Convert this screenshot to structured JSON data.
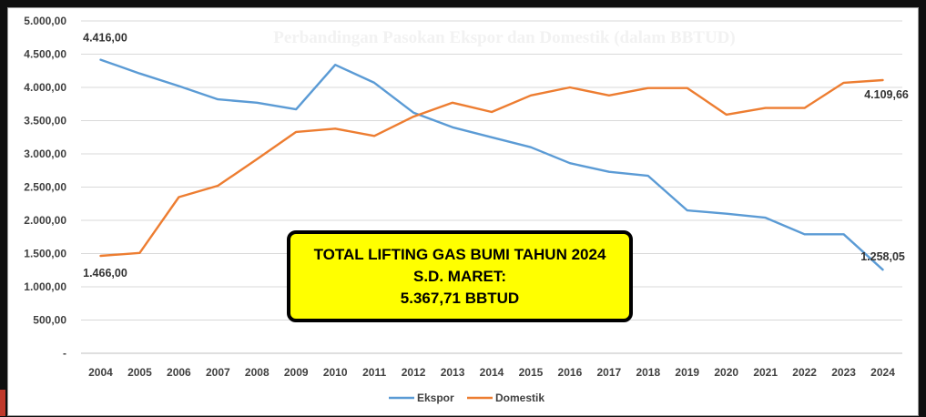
{
  "colors": {
    "ekspor": "#5b9bd5",
    "domestik": "#ed7d31",
    "grid": "#d9d9d9",
    "box_fill": "#ffff00"
  },
  "chart_data": {
    "type": "line",
    "title": "Perbandingan Pasokan Ekspor dan Domestik (dalam BBTUD)",
    "x": [
      "2004",
      "2005",
      "2006",
      "2007",
      "2008",
      "2009",
      "2010",
      "2011",
      "2012",
      "2013",
      "2014",
      "2015",
      "2016",
      "2017",
      "2018",
      "2019",
      "2020",
      "2021",
      "2022",
      "2023",
      "2024"
    ],
    "series": [
      {
        "name": "Ekspor",
        "values": [
          4416,
          4210,
          4020,
          3820,
          3770,
          3670,
          4340,
          4070,
          3620,
          3400,
          3250,
          3100,
          2860,
          2730,
          2670,
          2150,
          2100,
          2040,
          1790,
          1790,
          1258.05
        ]
      },
      {
        "name": "Domestik",
        "values": [
          1466,
          1510,
          2350,
          2520,
          2920,
          3330,
          3380,
          3270,
          3560,
          3770,
          3630,
          3880,
          4000,
          3880,
          3990,
          3990,
          3590,
          3690,
          3690,
          4070,
          4109.66
        ]
      }
    ],
    "yticks": [
      "-",
      "500,00",
      "1.000,00",
      "1.500,00",
      "2.000,00",
      "2.500,00",
      "3.000,00",
      "3.500,00",
      "4.000,00",
      "4.500,00",
      "5.000,00"
    ],
    "ylim": [
      0,
      5000
    ],
    "grid": true,
    "legend": "bottom-center",
    "data_labels": [
      {
        "series": "Ekspor",
        "x": "2004",
        "text": "4.416,00"
      },
      {
        "series": "Domestik",
        "x": "2004",
        "text": "1.466,00"
      },
      {
        "series": "Domestik",
        "x": "2024",
        "text": "4.109,66"
      },
      {
        "series": "Ekspor",
        "x": "2024",
        "text": "1.258,05"
      }
    ]
  },
  "annotation": {
    "line1": "TOTAL LIFTING GAS BUMI TAHUN 2024",
    "line2": "S.D. MARET:",
    "line3": "5.367,71 BBTUD"
  }
}
